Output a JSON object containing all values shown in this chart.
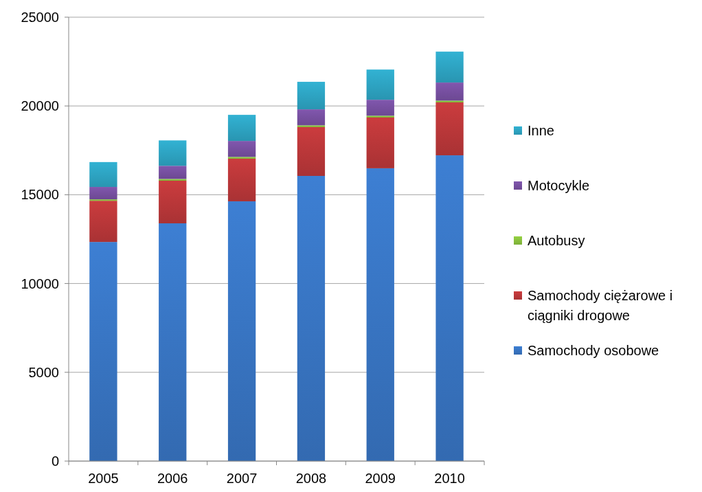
{
  "chart_data": {
    "type": "bar",
    "stacked": true,
    "categories": [
      "2005",
      "2006",
      "2007",
      "2008",
      "2009",
      "2010"
    ],
    "series": [
      {
        "name": "Samochody osobowe",
        "color": "#3a78c8",
        "values": [
          12340,
          13390,
          14630,
          16060,
          16490,
          17220
        ]
      },
      {
        "name": "Samochody ciężarowe i ciągniki drogowe",
        "color": "#c0393b",
        "values": [
          2320,
          2400,
          2400,
          2750,
          2860,
          2980
        ]
      },
      {
        "name": "Autobusy",
        "color": "#8dc63f",
        "values": [
          80,
          100,
          100,
          100,
          100,
          100
        ]
      },
      {
        "name": "Motocykle",
        "color": "#7a52a5",
        "values": [
          700,
          740,
          900,
          900,
          900,
          1020
        ]
      },
      {
        "name": "Inne",
        "color": "#2fa9c8",
        "values": [
          1400,
          1430,
          1470,
          1550,
          1700,
          1740
        ]
      }
    ],
    "ylim": [
      0,
      25000
    ],
    "yticks": [
      0,
      5000,
      10000,
      15000,
      20000,
      25000
    ],
    "grid": "y",
    "legend": "right"
  }
}
